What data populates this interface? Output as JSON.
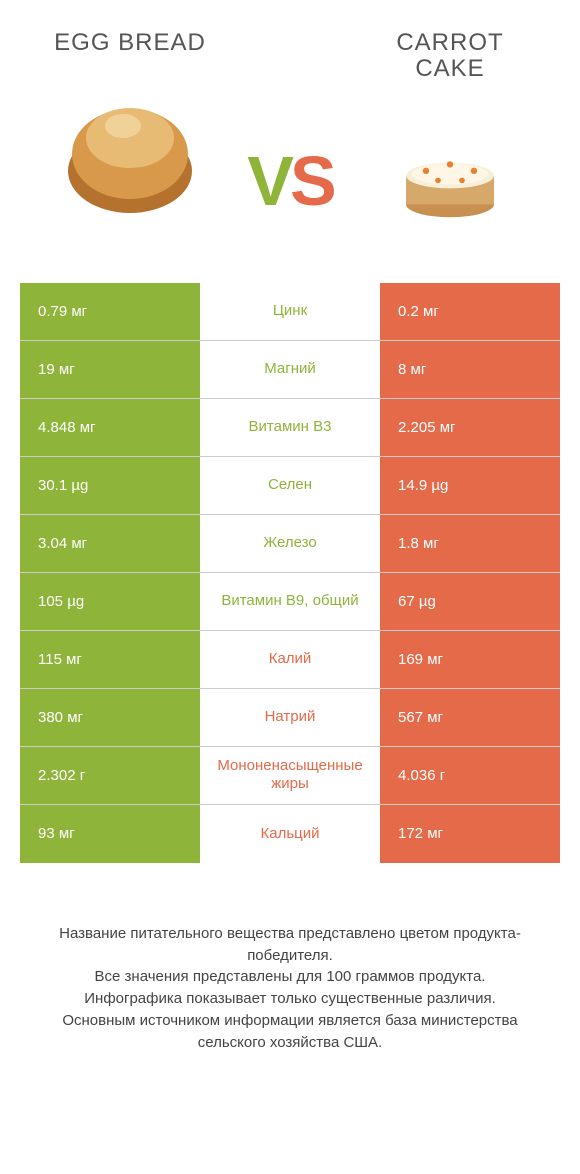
{
  "colors": {
    "green": "#8fb43a",
    "orange": "#e46a4a"
  },
  "left": {
    "title": "EGG BREAD"
  },
  "right": {
    "title": "CARROT\nCAKE"
  },
  "vs": {
    "v": "V",
    "s": "S"
  },
  "rows": [
    {
      "l": "0.79 мг",
      "c": "Цинк",
      "r": "0.2 мг",
      "winner": "left"
    },
    {
      "l": "19 мг",
      "c": "Магний",
      "r": "8 мг",
      "winner": "left"
    },
    {
      "l": "4.848 мг",
      "c": "Витамин B3",
      "r": "2.205 мг",
      "winner": "left"
    },
    {
      "l": "30.1 µg",
      "c": "Селен",
      "r": "14.9 µg",
      "winner": "left"
    },
    {
      "l": "3.04 мг",
      "c": "Железо",
      "r": "1.8 мг",
      "winner": "left"
    },
    {
      "l": "105 µg",
      "c": "Витамин B9, общий",
      "r": "67 µg",
      "winner": "left"
    },
    {
      "l": "115 мг",
      "c": "Калий",
      "r": "169 мг",
      "winner": "right"
    },
    {
      "l": "380 мг",
      "c": "Натрий",
      "r": "567 мг",
      "winner": "right"
    },
    {
      "l": "2.302 г",
      "c": "Мононенасыщенные жиры",
      "r": "4.036 г",
      "winner": "right"
    },
    {
      "l": "93 мг",
      "c": "Кальций",
      "r": "172 мг",
      "winner": "right"
    }
  ],
  "footer": {
    "l1": "Название питательного вещества представлено цветом продукта-победителя.",
    "l2": "Все значения представлены для 100 граммов продукта.",
    "l3": "Инфографика показывает только существенные различия.",
    "l4": "Основным источником информации является база министерства сельского хозяйства США."
  }
}
